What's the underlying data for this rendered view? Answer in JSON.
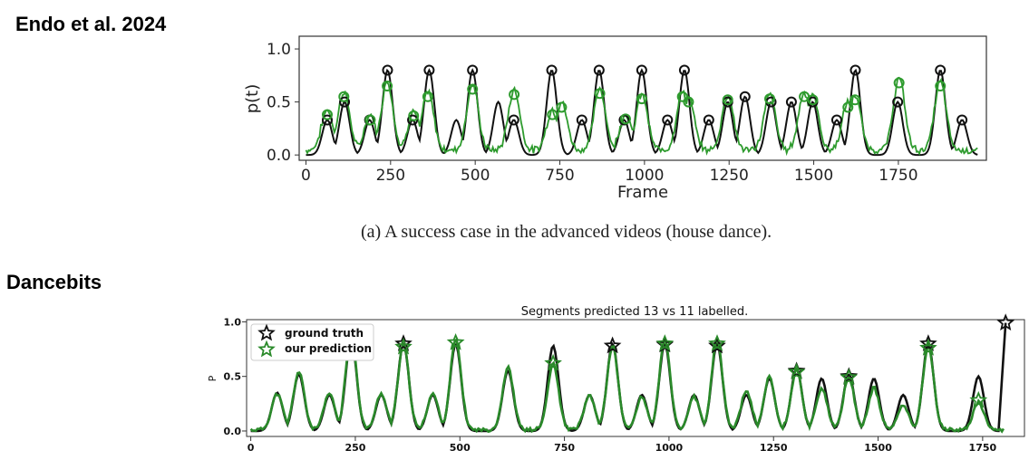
{
  "headings": {
    "top": "Endo et al. 2024",
    "bottom": "Dancebits"
  },
  "caption": "(a)  A success case in the advanced videos (house dance).",
  "colors": {
    "truth": "#111111",
    "prediction": "#2e9b2e",
    "prediction_b": "#2a8a2a"
  },
  "chart_data": [
    {
      "type": "line",
      "title": "",
      "xlabel": "Frame",
      "ylabel": "p(t)",
      "xlim": [
        -20,
        2010
      ],
      "ylim": [
        -0.05,
        1.12
      ],
      "xticks": [
        0,
        250,
        500,
        750,
        1000,
        1250,
        1500,
        1750
      ],
      "xtick_labels": [
        "0",
        "250",
        "500",
        "750",
        "1000",
        "1250",
        "1500",
        "1750"
      ],
      "yticks": [
        0.0,
        0.5,
        1.0
      ],
      "ytick_labels": [
        "0.0",
        "0.5",
        "1.0"
      ],
      "series": [
        {
          "role": "ground-truth",
          "peaks": [
            [
              63,
              0.33
            ],
            [
              114,
              0.5
            ],
            [
              188,
              0.33
            ],
            [
              241,
              0.8
            ],
            [
              315,
              0.33
            ],
            [
              364,
              0.8
            ],
            [
              444,
              0.33
            ],
            [
              492,
              0.8
            ],
            [
              568,
              0.5
            ],
            [
              614,
              0.33
            ],
            [
              726,
              0.8
            ],
            [
              815,
              0.33
            ],
            [
              866,
              0.8
            ],
            [
              940,
              0.33
            ],
            [
              992,
              0.8
            ],
            [
              1068,
              0.33
            ],
            [
              1118,
              0.8
            ],
            [
              1190,
              0.33
            ],
            [
              1246,
              0.5
            ],
            [
              1297,
              0.55
            ],
            [
              1374,
              0.5
            ],
            [
              1434,
              0.5
            ],
            [
              1497,
              0.5
            ],
            [
              1568,
              0.33
            ],
            [
              1623,
              0.8
            ],
            [
              1748,
              0.5
            ],
            [
              1874,
              0.8
            ],
            [
              1938,
              0.33
            ]
          ],
          "markers": [
            [
              63,
              0.33
            ],
            [
              114,
              0.5
            ],
            [
              188,
              0.33
            ],
            [
              241,
              0.8
            ],
            [
              315,
              0.33
            ],
            [
              364,
              0.8
            ],
            [
              492,
              0.8
            ],
            [
              614,
              0.33
            ],
            [
              726,
              0.8
            ],
            [
              815,
              0.33
            ],
            [
              866,
              0.8
            ],
            [
              940,
              0.33
            ],
            [
              992,
              0.8
            ],
            [
              1068,
              0.33
            ],
            [
              1118,
              0.8
            ],
            [
              1190,
              0.33
            ],
            [
              1246,
              0.5
            ],
            [
              1297,
              0.55
            ],
            [
              1374,
              0.5
            ],
            [
              1434,
              0.5
            ],
            [
              1497,
              0.5
            ],
            [
              1568,
              0.33
            ],
            [
              1623,
              0.8
            ],
            [
              1748,
              0.5
            ],
            [
              1874,
              0.8
            ],
            [
              1938,
              0.33
            ]
          ]
        },
        {
          "role": "prediction",
          "peaks": [
            [
              63,
              0.38
            ],
            [
              112,
              0.55
            ],
            [
              190,
              0.33
            ],
            [
              240,
              0.65
            ],
            [
              318,
              0.37
            ],
            [
              360,
              0.55
            ],
            [
              492,
              0.62
            ],
            [
              615,
              0.57
            ],
            [
              728,
              0.38
            ],
            [
              755,
              0.45
            ],
            [
              868,
              0.58
            ],
            [
              944,
              0.34
            ],
            [
              992,
              0.53
            ],
            [
              1112,
              0.55
            ],
            [
              1130,
              0.5
            ],
            [
              1246,
              0.52
            ],
            [
              1370,
              0.53
            ],
            [
              1472,
              0.55
            ],
            [
              1497,
              0.52
            ],
            [
              1601,
              0.45
            ],
            [
              1622,
              0.52
            ],
            [
              1752,
              0.68
            ],
            [
              1874,
              0.65
            ]
          ],
          "markers": [
            [
              63,
              0.38
            ],
            [
              112,
              0.55
            ],
            [
              190,
              0.33
            ],
            [
              240,
              0.65
            ],
            [
              318,
              0.37
            ],
            [
              360,
              0.55
            ],
            [
              492,
              0.62
            ],
            [
              615,
              0.57
            ],
            [
              728,
              0.38
            ],
            [
              755,
              0.45
            ],
            [
              868,
              0.58
            ],
            [
              944,
              0.34
            ],
            [
              992,
              0.53
            ],
            [
              1112,
              0.55
            ],
            [
              1130,
              0.5
            ],
            [
              1246,
              0.52
            ],
            [
              1370,
              0.53
            ],
            [
              1472,
              0.55
            ],
            [
              1497,
              0.52
            ],
            [
              1601,
              0.45
            ],
            [
              1622,
              0.52
            ],
            [
              1752,
              0.68
            ],
            [
              1874,
              0.65
            ]
          ]
        }
      ]
    },
    {
      "type": "line",
      "title": "Segments predicted 13 vs 11 labelled.",
      "xlabel": "",
      "ylabel": "P",
      "xlim": [
        -10,
        1850
      ],
      "ylim": [
        -0.05,
        1.02
      ],
      "xticks": [
        0,
        250,
        500,
        750,
        1000,
        1250,
        1500,
        1750
      ],
      "xtick_labels": [
        "0",
        "250",
        "500",
        "750",
        "1000",
        "1250",
        "1500",
        "1750"
      ],
      "yticks": [
        0.0,
        0.5,
        1.0
      ],
      "ytick_labels": [
        "0.0",
        "0.5",
        "1.0"
      ],
      "legend": {
        "placement": "top-left",
        "entries": [
          "ground truth",
          "our prediction"
        ]
      },
      "series": [
        {
          "name": "ground truth",
          "peaks": [
            [
              63,
              0.35
            ],
            [
              115,
              0.52
            ],
            [
              188,
              0.33
            ],
            [
              240,
              0.85
            ],
            [
              312,
              0.33
            ],
            [
              365,
              0.8
            ],
            [
              435,
              0.33
            ],
            [
              490,
              0.8
            ],
            [
              615,
              0.55
            ],
            [
              723,
              0.78
            ],
            [
              810,
              0.33
            ],
            [
              865,
              0.8
            ],
            [
              935,
              0.33
            ],
            [
              990,
              0.8
            ],
            [
              1060,
              0.33
            ],
            [
              1115,
              0.8
            ],
            [
              1185,
              0.33
            ],
            [
              1240,
              0.48
            ],
            [
              1305,
              0.57
            ],
            [
              1365,
              0.48
            ],
            [
              1430,
              0.52
            ],
            [
              1490,
              0.48
            ],
            [
              1560,
              0.33
            ],
            [
              1620,
              0.8
            ],
            [
              1740,
              0.5
            ]
          ],
          "markers": [
            [
              240,
              0.8
            ],
            [
              365,
              0.8
            ],
            [
              865,
              0.78
            ],
            [
              990,
              0.79
            ],
            [
              1115,
              0.78
            ],
            [
              1305,
              0.55
            ],
            [
              1430,
              0.5
            ],
            [
              1620,
              0.8
            ],
            [
              1805,
              0.99
            ]
          ]
        },
        {
          "name": "our prediction",
          "peaks": [
            [
              63,
              0.33
            ],
            [
              115,
              0.53
            ],
            [
              188,
              0.33
            ],
            [
              240,
              0.88
            ],
            [
              312,
              0.33
            ],
            [
              365,
              0.78
            ],
            [
              435,
              0.33
            ],
            [
              490,
              0.82
            ],
            [
              615,
              0.57
            ],
            [
              723,
              0.6
            ],
            [
              810,
              0.31
            ],
            [
              865,
              0.77
            ],
            [
              935,
              0.3
            ],
            [
              990,
              0.82
            ],
            [
              1060,
              0.3
            ],
            [
              1115,
              0.82
            ],
            [
              1185,
              0.35
            ],
            [
              1240,
              0.48
            ],
            [
              1305,
              0.55
            ],
            [
              1365,
              0.38
            ],
            [
              1430,
              0.48
            ],
            [
              1490,
              0.38
            ],
            [
              1560,
              0.22
            ],
            [
              1620,
              0.77
            ],
            [
              1740,
              0.25
            ]
          ],
          "markers": [
            [
              240,
              0.89
            ],
            [
              365,
              0.77
            ],
            [
              490,
              0.81
            ],
            [
              723,
              0.62
            ],
            [
              990,
              0.8
            ],
            [
              1115,
              0.8
            ],
            [
              1305,
              0.54
            ],
            [
              1430,
              0.49
            ],
            [
              1620,
              0.76
            ],
            [
              1740,
              0.28
            ]
          ]
        }
      ]
    }
  ]
}
